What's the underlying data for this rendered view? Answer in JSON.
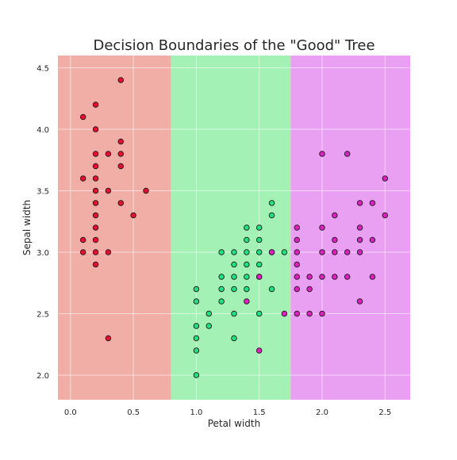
{
  "chart_data": {
    "type": "scatter",
    "title": "Decision Boundaries of the \"Good\" Tree",
    "xlabel": "Petal width",
    "ylabel": "Sepal width",
    "xlim": [
      -0.1,
      2.7
    ],
    "ylim": [
      1.8,
      4.6
    ],
    "x_ticks": [
      "0.0",
      "0.5",
      "1.0",
      "1.5",
      "2.0",
      "2.5"
    ],
    "y_ticks": [
      "2.0",
      "2.5",
      "3.0",
      "3.5",
      "4.0",
      "4.5"
    ],
    "grid": true,
    "regions": [
      {
        "x_from": -0.1,
        "x_to": 0.8,
        "color": "#f1aea7"
      },
      {
        "x_from": 0.8,
        "x_to": 1.75,
        "color": "#a4f1b5"
      },
      {
        "x_from": 1.75,
        "x_to": 2.7,
        "color": "#eaa0f2"
      }
    ],
    "series": [
      {
        "color": "#e3112f",
        "points": [
          [
            0.4,
            4.4
          ],
          [
            0.2,
            4.2
          ],
          [
            0.1,
            4.1
          ],
          [
            0.2,
            4.0
          ],
          [
            0.4,
            3.9
          ],
          [
            0.2,
            3.8
          ],
          [
            0.3,
            3.8
          ],
          [
            0.4,
            3.8
          ],
          [
            0.2,
            3.7
          ],
          [
            0.4,
            3.7
          ],
          [
            0.1,
            3.6
          ],
          [
            0.2,
            3.6
          ],
          [
            0.2,
            3.5
          ],
          [
            0.3,
            3.5
          ],
          [
            0.6,
            3.5
          ],
          [
            0.2,
            3.4
          ],
          [
            0.4,
            3.4
          ],
          [
            0.2,
            3.3
          ],
          [
            0.5,
            3.3
          ],
          [
            0.2,
            3.2
          ],
          [
            0.1,
            3.1
          ],
          [
            0.2,
            3.1
          ],
          [
            0.1,
            3.0
          ],
          [
            0.2,
            3.0
          ],
          [
            0.3,
            3.0
          ],
          [
            0.2,
            2.9
          ],
          [
            0.3,
            2.3
          ]
        ]
      },
      {
        "color": "#22e07e",
        "points": [
          [
            1.6,
            3.4
          ],
          [
            1.6,
            3.3
          ],
          [
            1.4,
            3.2
          ],
          [
            1.5,
            3.2
          ],
          [
            1.4,
            3.1
          ],
          [
            1.5,
            3.1
          ],
          [
            1.2,
            3.0
          ],
          [
            1.3,
            3.0
          ],
          [
            1.4,
            3.0
          ],
          [
            1.5,
            3.0
          ],
          [
            1.6,
            3.0
          ],
          [
            1.7,
            3.0
          ],
          [
            1.3,
            2.9
          ],
          [
            1.4,
            2.9
          ],
          [
            1.5,
            2.9
          ],
          [
            1.2,
            2.8
          ],
          [
            1.3,
            2.8
          ],
          [
            1.4,
            2.8
          ],
          [
            1.5,
            2.8
          ],
          [
            1.2,
            2.7
          ],
          [
            1.3,
            2.7
          ],
          [
            1.4,
            2.7
          ],
          [
            1.6,
            2.7
          ],
          [
            1.0,
            2.7
          ],
          [
            1.0,
            2.6
          ],
          [
            1.2,
            2.6
          ],
          [
            1.1,
            2.5
          ],
          [
            1.3,
            2.5
          ],
          [
            1.5,
            2.5
          ],
          [
            1.0,
            2.4
          ],
          [
            1.1,
            2.4
          ],
          [
            1.0,
            2.3
          ],
          [
            1.3,
            2.3
          ],
          [
            1.0,
            2.2
          ],
          [
            1.0,
            2.0
          ]
        ]
      },
      {
        "color": "#e01fc2",
        "points": [
          [
            2.0,
            3.8
          ],
          [
            2.2,
            3.8
          ],
          [
            2.5,
            3.6
          ],
          [
            2.3,
            3.4
          ],
          [
            2.4,
            3.4
          ],
          [
            2.1,
            3.3
          ],
          [
            2.5,
            3.3
          ],
          [
            1.8,
            3.2
          ],
          [
            2.0,
            3.2
          ],
          [
            2.3,
            3.2
          ],
          [
            1.8,
            3.1
          ],
          [
            2.1,
            3.1
          ],
          [
            2.3,
            3.1
          ],
          [
            2.4,
            3.1
          ],
          [
            1.8,
            3.0
          ],
          [
            2.0,
            3.0
          ],
          [
            2.1,
            3.0
          ],
          [
            2.2,
            3.0
          ],
          [
            2.3,
            3.0
          ],
          [
            1.6,
            3.0
          ],
          [
            1.8,
            2.9
          ],
          [
            1.5,
            2.8
          ],
          [
            1.8,
            2.8
          ],
          [
            1.9,
            2.8
          ],
          [
            2.0,
            2.8
          ],
          [
            2.1,
            2.8
          ],
          [
            2.2,
            2.8
          ],
          [
            2.4,
            2.8
          ],
          [
            1.8,
            2.7
          ],
          [
            1.9,
            2.7
          ],
          [
            2.3,
            2.6
          ],
          [
            1.4,
            2.6
          ],
          [
            1.7,
            2.5
          ],
          [
            1.8,
            2.5
          ],
          [
            1.9,
            2.5
          ],
          [
            2.0,
            2.5
          ],
          [
            1.5,
            2.2
          ]
        ]
      }
    ]
  }
}
